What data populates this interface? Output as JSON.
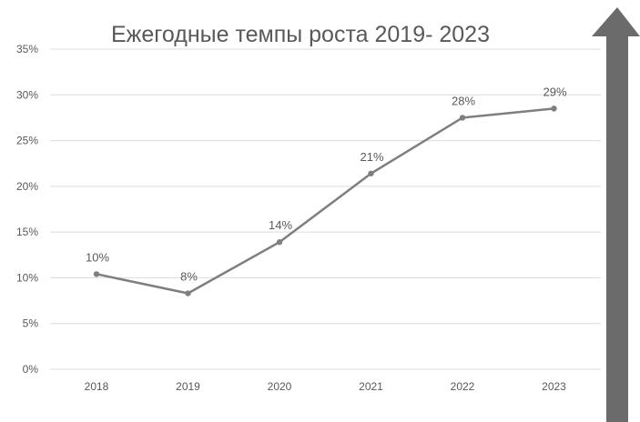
{
  "chart_data": {
    "type": "line",
    "title": "Ежегодные темпы роста 2019- 2023",
    "categories": [
      "2018",
      "2019",
      "2020",
      "2021",
      "2022",
      "2023"
    ],
    "series": [
      {
        "values": [
          10.4,
          8.3,
          13.9,
          21.4,
          27.5,
          28.5
        ],
        "data_labels": [
          "10%",
          "8%",
          "14%",
          "21%",
          "28%",
          "29%"
        ]
      }
    ],
    "y_ticks": [
      "0%",
      "5%",
      "10%",
      "15%",
      "20%",
      "25%",
      "30%",
      "35%"
    ],
    "ylim": [
      0,
      35
    ],
    "xlabel": "",
    "ylabel": "",
    "grid": true,
    "legend": "none",
    "colors": {
      "line": "#7f7f7f",
      "marker": "#7f7f7f",
      "arrow": "#6b6b6b",
      "grid": "#dcdcdc",
      "text": "#595959"
    }
  }
}
